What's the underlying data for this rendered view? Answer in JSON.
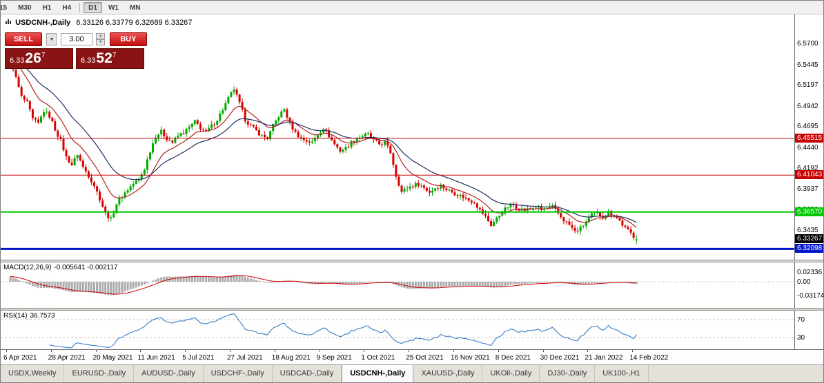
{
  "toolbar": {
    "timeframes": [
      {
        "label": "15",
        "active": false
      },
      {
        "label": "M30",
        "active": false
      },
      {
        "label": "H1",
        "active": false
      },
      {
        "label": "H4",
        "active": false
      },
      {
        "label": "D1",
        "active": true
      },
      {
        "label": "W1",
        "active": false
      },
      {
        "label": "MN",
        "active": false
      }
    ]
  },
  "chart": {
    "title": "USDCNH-,Daily",
    "ohlc": "6.33126 6.33779 6.32689 6.33267"
  },
  "trade_panel": {
    "sell_label": "SELL",
    "buy_label": "BUY",
    "volume": "3.00",
    "dropdown_icon": "▼",
    "spinner_up_icon": "▲",
    "spinner_down_icon": "▼",
    "sell_price": {
      "prefix": "6.33",
      "big": "26",
      "sup": "7"
    },
    "buy_price": {
      "prefix": "6.33",
      "big": "52",
      "sup": "7"
    }
  },
  "indicators": {
    "macd": {
      "name": "MACD(12,26,9)",
      "values": "-0.005641 -0.002117"
    },
    "rsi": {
      "name": "RSI(14)",
      "values": "36.7573"
    }
  },
  "tabs": [
    {
      "label": "USDX,Weekly",
      "active": false
    },
    {
      "label": "EURUSD-,Daily",
      "active": false
    },
    {
      "label": "AUDUSD-,Daily",
      "active": false
    },
    {
      "label": "USDCHF-,Daily",
      "active": false
    },
    {
      "label": "USDCAD-,Daily",
      "active": false
    },
    {
      "label": "USDCNH-,Daily",
      "active": true
    },
    {
      "label": "XAUUSD-,Daily",
      "active": false
    },
    {
      "label": "UKOil-,Daily",
      "active": false
    },
    {
      "label": "DJ30-,Daily",
      "active": false
    },
    {
      "label": "UK100-,H1",
      "active": false
    }
  ],
  "chart_data": {
    "type": "candlestick",
    "symbol": "USDCNH-",
    "timeframe": "Daily",
    "ohlc_current": {
      "open": 6.33126,
      "high": 6.33779,
      "low": 6.32689,
      "close": 6.33267
    },
    "bars_count": 225,
    "price_axis": {
      "min": 6.308,
      "max": 6.605,
      "tick_labels": [
        "6.5700",
        "6.5445",
        "6.5197",
        "6.4942",
        "6.4695",
        "6.4440",
        "6.4192",
        "6.3937",
        "6.3690",
        "6.3435"
      ]
    },
    "x_tick_labels": [
      "6 Apr 2021",
      "28 Apr 2021",
      "20 May 2021",
      "11 Jun 2021",
      "5 Jul 2021",
      "27 Jul 2021",
      "18 Aug 2021",
      "9 Sep 2021",
      "1 Oct 2021",
      "25 Oct 2021",
      "16 Nov 2021",
      "8 Dec 2021",
      "30 Dec 2021",
      "21 Jan 2022",
      "14 Feb 2022"
    ],
    "horizontal_lines": [
      {
        "price": 6.45515,
        "label": "6.45515",
        "color": "#c80000",
        "width": 1
      },
      {
        "price": 6.41043,
        "label": "6.41043",
        "color": "#c80000",
        "width": 1
      },
      {
        "price": 6.3657,
        "label": "6.36570",
        "color": "#00c800",
        "width": 2
      },
      {
        "price": 6.32098,
        "label": "6.32098",
        "color": "#0016c8",
        "width": 3
      }
    ],
    "current_price_label": "6.33267",
    "candle_colors": {
      "up": "#00a800",
      "down": "#d60000"
    },
    "ma_lines": [
      {
        "period": 12,
        "color": "#b42222"
      },
      {
        "period": 26,
        "color": "#1f3060"
      }
    ],
    "price_path_anchors": [
      [
        0,
        6.552
      ],
      [
        2,
        6.528
      ],
      [
        4,
        6.505
      ],
      [
        6,
        6.498
      ],
      [
        8,
        6.478
      ],
      [
        10,
        6.473
      ],
      [
        12,
        6.488
      ],
      [
        14,
        6.482
      ],
      [
        16,
        6.466
      ],
      [
        18,
        6.452
      ],
      [
        20,
        6.432
      ],
      [
        22,
        6.423
      ],
      [
        24,
        6.436
      ],
      [
        26,
        6.42
      ],
      [
        28,
        6.41
      ],
      [
        30,
        6.398
      ],
      [
        32,
        6.382
      ],
      [
        34,
        6.364
      ],
      [
        36,
        6.357
      ],
      [
        38,
        6.376
      ],
      [
        40,
        6.385
      ],
      [
        42,
        6.393
      ],
      [
        44,
        6.4
      ],
      [
        46,
        6.405
      ],
      [
        48,
        6.418
      ],
      [
        50,
        6.44
      ],
      [
        52,
        6.458
      ],
      [
        54,
        6.463
      ],
      [
        56,
        6.455
      ],
      [
        58,
        6.45
      ],
      [
        60,
        6.458
      ],
      [
        62,
        6.462
      ],
      [
        64,
        6.468
      ],
      [
        66,
        6.475
      ],
      [
        68,
        6.468
      ],
      [
        70,
        6.462
      ],
      [
        72,
        6.47
      ],
      [
        74,
        6.478
      ],
      [
        76,
        6.49
      ],
      [
        78,
        6.503
      ],
      [
        80,
        6.515
      ],
      [
        82,
        6.497
      ],
      [
        84,
        6.478
      ],
      [
        86,
        6.47
      ],
      [
        88,
        6.464
      ],
      [
        90,
        6.458
      ],
      [
        92,
        6.455
      ],
      [
        94,
        6.47
      ],
      [
        96,
        6.482
      ],
      [
        98,
        6.49
      ],
      [
        100,
        6.473
      ],
      [
        102,
        6.462
      ],
      [
        104,
        6.455
      ],
      [
        106,
        6.452
      ],
      [
        108,
        6.45
      ],
      [
        110,
        6.46
      ],
      [
        112,
        6.468
      ],
      [
        114,
        6.458
      ],
      [
        116,
        6.448
      ],
      [
        118,
        6.44
      ],
      [
        120,
        6.443
      ],
      [
        122,
        6.45
      ],
      [
        124,
        6.455
      ],
      [
        126,
        6.458
      ],
      [
        128,
        6.46
      ],
      [
        130,
        6.452
      ],
      [
        132,
        6.448
      ],
      [
        134,
        6.45
      ],
      [
        136,
        6.438
      ],
      [
        138,
        6.41
      ],
      [
        140,
        6.39
      ],
      [
        142,
        6.395
      ],
      [
        144,
        6.398
      ],
      [
        146,
        6.4
      ],
      [
        148,
        6.395
      ],
      [
        150,
        6.39
      ],
      [
        152,
        6.395
      ],
      [
        154,
        6.398
      ],
      [
        156,
        6.393
      ],
      [
        158,
        6.39
      ],
      [
        160,
        6.387
      ],
      [
        162,
        6.384
      ],
      [
        164,
        6.38
      ],
      [
        166,
        6.378
      ],
      [
        168,
        6.368
      ],
      [
        170,
        6.36
      ],
      [
        172,
        6.35
      ],
      [
        174,
        6.358
      ],
      [
        176,
        6.366
      ],
      [
        178,
        6.372
      ],
      [
        180,
        6.374
      ],
      [
        182,
        6.37
      ],
      [
        184,
        6.368
      ],
      [
        186,
        6.37
      ],
      [
        188,
        6.372
      ],
      [
        190,
        6.368
      ],
      [
        192,
        6.37
      ],
      [
        194,
        6.372
      ],
      [
        196,
        6.364
      ],
      [
        198,
        6.356
      ],
      [
        200,
        6.35
      ],
      [
        202,
        6.342
      ],
      [
        204,
        6.346
      ],
      [
        206,
        6.354
      ],
      [
        208,
        6.362
      ],
      [
        210,
        6.364
      ],
      [
        212,
        6.36
      ],
      [
        214,
        6.366
      ],
      [
        216,
        6.362
      ],
      [
        218,
        6.355
      ],
      [
        220,
        6.346
      ],
      [
        222,
        6.34
      ],
      [
        224,
        6.333
      ]
    ],
    "macd": {
      "fast": 12,
      "slow": 26,
      "signal": 9,
      "current_macd": -0.005641,
      "current_signal": -0.002117,
      "axis_tick_labels": [
        "0.02336",
        "0.00",
        "-0.03174"
      ],
      "histogram_color": "#ababab",
      "signal_color": "#cc0000"
    },
    "rsi": {
      "period": 14,
      "current": 36.7573,
      "levels": [
        70,
        30
      ],
      "axis_tick_labels": [
        "70",
        "30"
      ],
      "color": "#3a7bc8"
    }
  }
}
